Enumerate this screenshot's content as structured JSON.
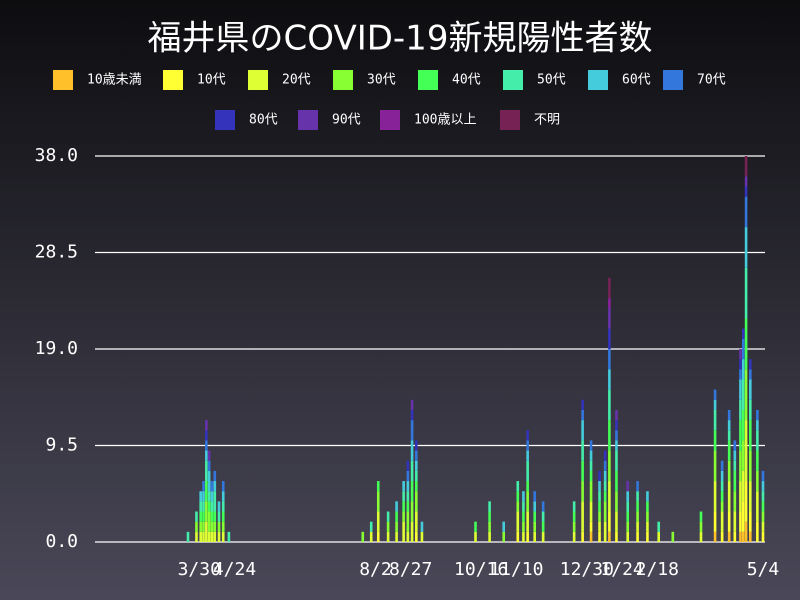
{
  "chart_data": {
    "type": "stacked-bar",
    "title": "福井県のCOVID-19新規陽性者数",
    "x": [
      66,
      72,
      75,
      77,
      79,
      81,
      83,
      85,
      88,
      91,
      95,
      190,
      196,
      201,
      208,
      214,
      219,
      222,
      225,
      228,
      232,
      270,
      280,
      290,
      300,
      304,
      307,
      312,
      318,
      340,
      346,
      352,
      358,
      362,
      365,
      370,
      378,
      385,
      392,
      400,
      410,
      430,
      440,
      445,
      450,
      454,
      458,
      460,
      462,
      465,
      470,
      474
    ],
    "xlim": [
      0,
      474
    ],
    "xticks": [
      {
        "value": 74,
        "label": "3/30"
      },
      {
        "value": 99,
        "label": "4/24"
      },
      {
        "value": 199,
        "label": "8/2"
      },
      {
        "value": 224,
        "label": "8/27"
      },
      {
        "value": 274,
        "label": "10/16"
      },
      {
        "value": 299,
        "label": "11/10"
      },
      {
        "value": 349,
        "label": "12/30"
      },
      {
        "value": 374,
        "label": "1/24"
      },
      {
        "value": 399,
        "label": "2/18"
      },
      {
        "value": 474,
        "label": "5/4"
      }
    ],
    "ylim": [
      0,
      38
    ],
    "yticks": [
      {
        "value": 0,
        "label": "0.0"
      },
      {
        "value": 9.5,
        "label": "9.5"
      },
      {
        "value": 19,
        "label": "19.0"
      },
      {
        "value": 28.5,
        "label": "28.5"
      },
      {
        "value": 38,
        "label": "38.0"
      }
    ],
    "grid": true,
    "series": [
      {
        "name": "10歳未満",
        "color": "#ffc02a",
        "values": [
          0,
          0,
          0,
          0,
          0,
          0,
          0,
          0,
          0,
          0,
          0,
          0,
          0,
          0,
          0,
          0,
          0,
          0,
          0,
          0,
          0,
          0,
          0,
          0,
          0,
          0,
          0,
          0,
          0,
          0,
          0,
          1,
          0,
          0,
          1,
          0,
          0,
          0,
          0,
          0,
          0,
          0,
          1,
          0,
          1,
          0,
          1,
          1,
          2,
          1,
          0,
          0
        ]
      },
      {
        "name": "10代",
        "color": "#ffff33",
        "values": [
          0,
          0,
          0,
          0,
          0,
          0,
          0,
          0,
          0,
          0,
          0,
          0,
          0,
          1,
          0,
          0,
          0,
          0,
          0,
          1,
          0,
          0,
          0,
          0,
          1,
          0,
          1,
          0,
          0,
          0,
          1,
          1,
          1,
          0,
          2,
          1,
          0,
          1,
          1,
          0,
          0,
          0,
          2,
          1,
          2,
          1,
          2,
          3,
          4,
          2,
          2,
          1
        ]
      },
      {
        "name": "20代",
        "color": "#ddff33",
        "values": [
          0,
          1,
          1,
          1,
          2,
          1,
          1,
          1,
          1,
          1,
          0,
          0,
          1,
          2,
          1,
          1,
          2,
          1,
          2,
          2,
          1,
          1,
          1,
          0,
          2,
          1,
          2,
          1,
          1,
          1,
          3,
          2,
          1,
          2,
          3,
          2,
          1,
          1,
          1,
          1,
          0,
          1,
          3,
          2,
          3,
          2,
          3,
          3,
          6,
          3,
          3,
          1
        ]
      },
      {
        "name": "30代",
        "color": "#88ff33",
        "values": [
          0,
          1,
          1,
          1,
          2,
          2,
          1,
          1,
          1,
          1,
          0,
          1,
          0,
          2,
          1,
          1,
          1,
          2,
          2,
          2,
          0,
          0,
          1,
          1,
          1,
          1,
          2,
          1,
          0,
          1,
          2,
          2,
          1,
          2,
          3,
          2,
          1,
          1,
          1,
          0,
          1,
          1,
          3,
          1,
          2,
          2,
          3,
          3,
          5,
          3,
          2,
          1
        ]
      },
      {
        "name": "40代",
        "color": "#44ff55",
        "values": [
          0,
          0,
          1,
          1,
          2,
          1,
          1,
          1,
          0,
          1,
          0,
          0,
          0,
          1,
          0,
          1,
          1,
          1,
          2,
          1,
          0,
          1,
          1,
          0,
          1,
          1,
          1,
          1,
          1,
          1,
          2,
          1,
          1,
          1,
          3,
          2,
          1,
          1,
          1,
          0,
          0,
          1,
          2,
          1,
          2,
          2,
          3,
          3,
          5,
          3,
          2,
          1
        ]
      },
      {
        "name": "50代",
        "color": "#44eeaa",
        "values": [
          1,
          1,
          1,
          1,
          2,
          1,
          1,
          2,
          1,
          1,
          1,
          0,
          1,
          0,
          1,
          0,
          1,
          1,
          2,
          1,
          0,
          0,
          1,
          0,
          1,
          1,
          2,
          0,
          1,
          1,
          2,
          1,
          1,
          1,
          3,
          2,
          1,
          1,
          0,
          1,
          0,
          0,
          2,
          1,
          1,
          1,
          2,
          3,
          5,
          2,
          2,
          1
        ]
      },
      {
        "name": "60代",
        "color": "#44ccdd",
        "values": [
          0,
          0,
          1,
          1,
          1,
          2,
          1,
          1,
          1,
          1,
          0,
          0,
          0,
          0,
          0,
          1,
          1,
          1,
          2,
          1,
          1,
          0,
          0,
          1,
          0,
          1,
          1,
          1,
          0,
          0,
          2,
          1,
          1,
          1,
          2,
          1,
          1,
          0,
          1,
          0,
          0,
          0,
          1,
          1,
          1,
          1,
          2,
          2,
          4,
          2,
          1,
          1
        ]
      },
      {
        "name": "70代",
        "color": "#3377dd",
        "values": [
          0,
          0,
          0,
          1,
          1,
          1,
          1,
          1,
          0,
          1,
          0,
          0,
          0,
          0,
          0,
          0,
          0,
          1,
          2,
          1,
          0,
          0,
          0,
          0,
          0,
          0,
          1,
          1,
          1,
          0,
          1,
          1,
          0,
          1,
          2,
          1,
          0,
          1,
          0,
          0,
          0,
          0,
          1,
          1,
          1,
          1,
          1,
          2,
          3,
          1,
          1,
          1
        ]
      },
      {
        "name": "80代",
        "color": "#3333bb",
        "values": [
          0,
          0,
          0,
          0,
          1,
          0,
          0,
          0,
          0,
          0,
          0,
          0,
          0,
          0,
          0,
          0,
          0,
          1,
          1,
          1,
          0,
          0,
          0,
          0,
          0,
          0,
          1,
          0,
          0,
          0,
          1,
          0,
          1,
          1,
          2,
          1,
          0,
          0,
          0,
          0,
          0,
          0,
          0,
          0,
          0,
          0,
          1,
          1,
          1,
          1,
          0,
          0
        ]
      },
      {
        "name": "90代",
        "color": "#6633aa",
        "values": [
          0,
          0,
          0,
          0,
          1,
          1,
          0,
          0,
          0,
          0,
          0,
          0,
          0,
          0,
          0,
          0,
          0,
          0,
          1,
          0,
          0,
          0,
          0,
          0,
          0,
          0,
          0,
          0,
          0,
          0,
          0,
          0,
          0,
          0,
          2,
          1,
          1,
          0,
          0,
          0,
          0,
          0,
          0,
          0,
          0,
          0,
          1,
          0,
          1,
          0,
          0,
          0
        ]
      },
      {
        "name": "100歳以上",
        "color": "#882299",
        "values": [
          0,
          0,
          0,
          0,
          0,
          0,
          0,
          0,
          0,
          0,
          0,
          0,
          0,
          0,
          0,
          0,
          0,
          0,
          0,
          0,
          0,
          0,
          0,
          0,
          0,
          0,
          0,
          0,
          0,
          0,
          0,
          0,
          0,
          0,
          1,
          0,
          0,
          0,
          0,
          0,
          0,
          0,
          0,
          0,
          0,
          0,
          0,
          0,
          0,
          0,
          0,
          0
        ]
      },
      {
        "name": "不明",
        "color": "#772255",
        "values": [
          0,
          0,
          0,
          0,
          0,
          0,
          0,
          0,
          0,
          0,
          0,
          0,
          0,
          0,
          0,
          0,
          0,
          0,
          0,
          0,
          0,
          0,
          0,
          0,
          0,
          0,
          0,
          0,
          0,
          0,
          0,
          0,
          0,
          0,
          2,
          0,
          0,
          0,
          0,
          0,
          0,
          0,
          0,
          0,
          0,
          0,
          0,
          0,
          2,
          0,
          0,
          0
        ]
      }
    ]
  }
}
